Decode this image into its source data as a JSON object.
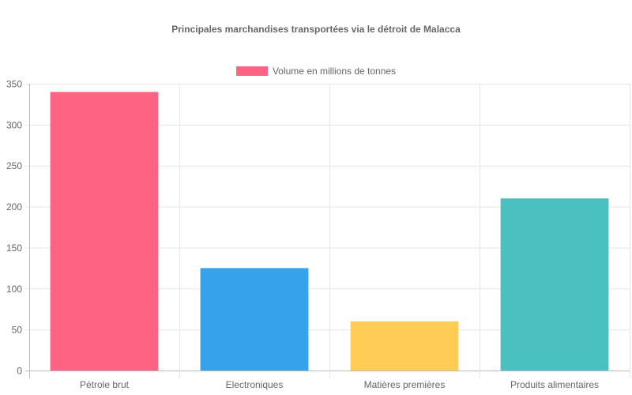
{
  "chart_data": {
    "type": "bar",
    "title": "Principales marchandises transportées via le détroit de Malacca",
    "categories": [
      "Pétrole brut",
      "Electroniques",
      "Matières premières",
      "Produits alimentaires"
    ],
    "series": [
      {
        "name": "Volume en millions de tonnes",
        "values": [
          340,
          125,
          60,
          210
        ],
        "colors": [
          "#ff6384",
          "#36a2eb",
          "#ffcd56",
          "#4bc0c0"
        ]
      }
    ],
    "xlabel": "",
    "ylabel": "",
    "ylim": [
      0,
      350
    ],
    "yticks": [
      0,
      50,
      100,
      150,
      200,
      250,
      300,
      350
    ],
    "grid": true,
    "legend_position": "top"
  },
  "legend": {
    "label": "Volume en millions de tonnes",
    "color": "#ff6384"
  }
}
